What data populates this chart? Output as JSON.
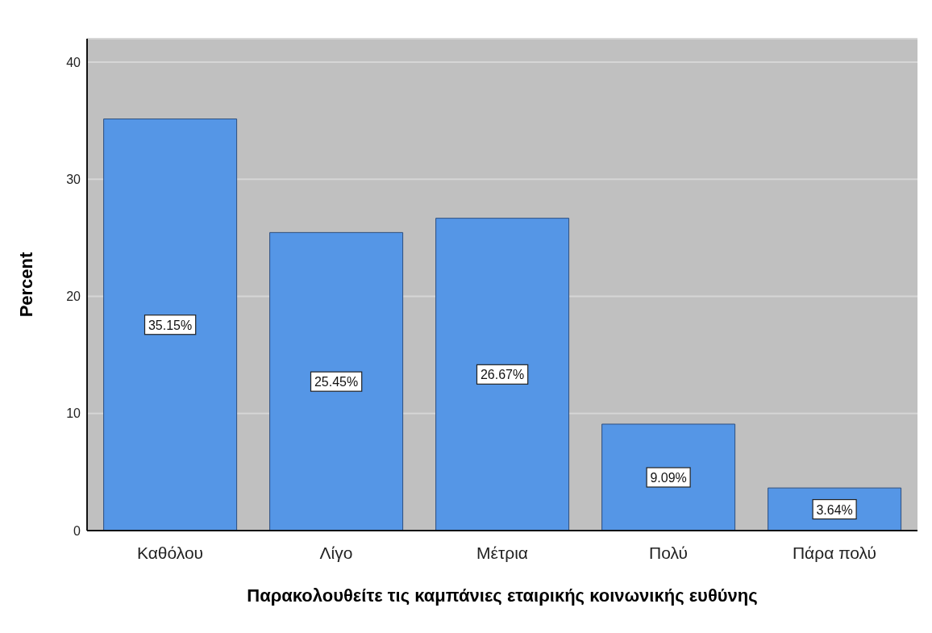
{
  "chart_data": {
    "type": "bar",
    "categories": [
      "Καθόλου",
      "Λίγο",
      "Μέτρια",
      "Πολύ",
      "Πάρα πολύ"
    ],
    "values": [
      35.15,
      25.45,
      26.67,
      9.09,
      3.64
    ],
    "value_labels": [
      "35.15%",
      "25.45%",
      "26.67%",
      "9.09%",
      "3.64%"
    ],
    "color": "#5596e6",
    "xlabel": "Παρακολουθείτε τις καμπάνιες εταιρικής κοινωνικής ευθύνης",
    "ylabel": "Percent",
    "ylim": [
      0,
      42
    ],
    "yticks": [
      0,
      10,
      20,
      30,
      40
    ],
    "grid": "y"
  }
}
